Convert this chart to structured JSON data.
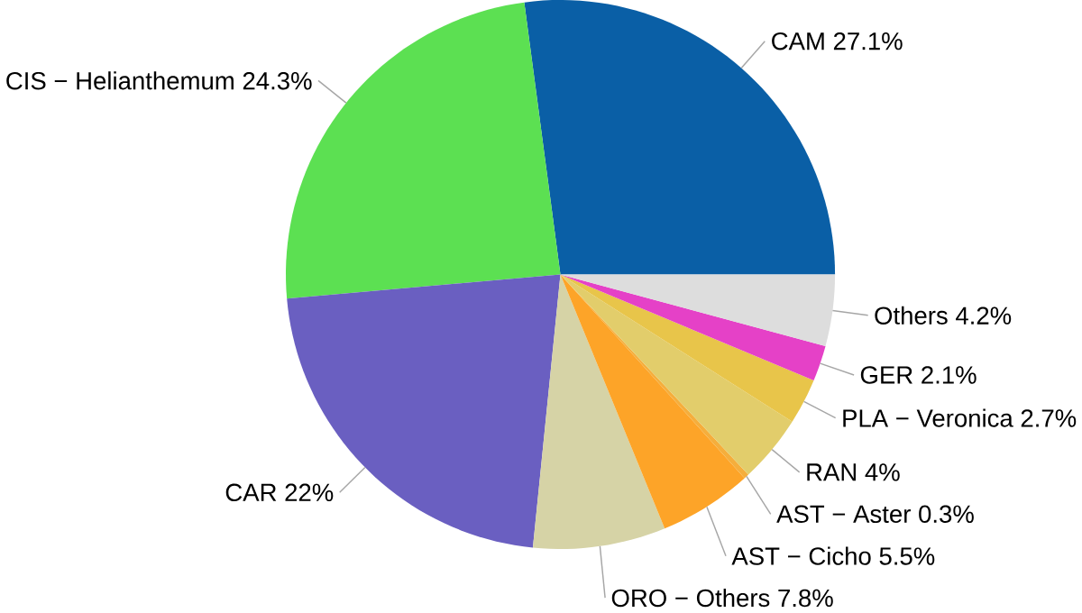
{
  "chart_data": {
    "type": "pie",
    "categories": [
      "CAM",
      "CIS − Helianthemum",
      "CAR",
      "ORO − Others",
      "AST − Cicho",
      "AST − Aster",
      "RAN",
      "PLA − Veronica",
      "GER",
      "Others"
    ],
    "values": [
      27.1,
      24.3,
      22,
      7.8,
      5.5,
      0.3,
      4,
      2.7,
      2.1,
      4.2
    ],
    "value_labels": [
      "27.1%",
      "24.3%",
      "22%",
      "7.8%",
      "5.5%",
      "0.3%",
      "4%",
      "2.7%",
      "2.1%",
      "4.2%"
    ],
    "colors": [
      "#0a5fa6",
      "#5ce052",
      "#6a5fc1",
      "#d6d3a6",
      "#fda428",
      "#f5ae3c",
      "#e2cd6b",
      "#e8c54a",
      "#e541c7",
      "#dddddd"
    ]
  }
}
